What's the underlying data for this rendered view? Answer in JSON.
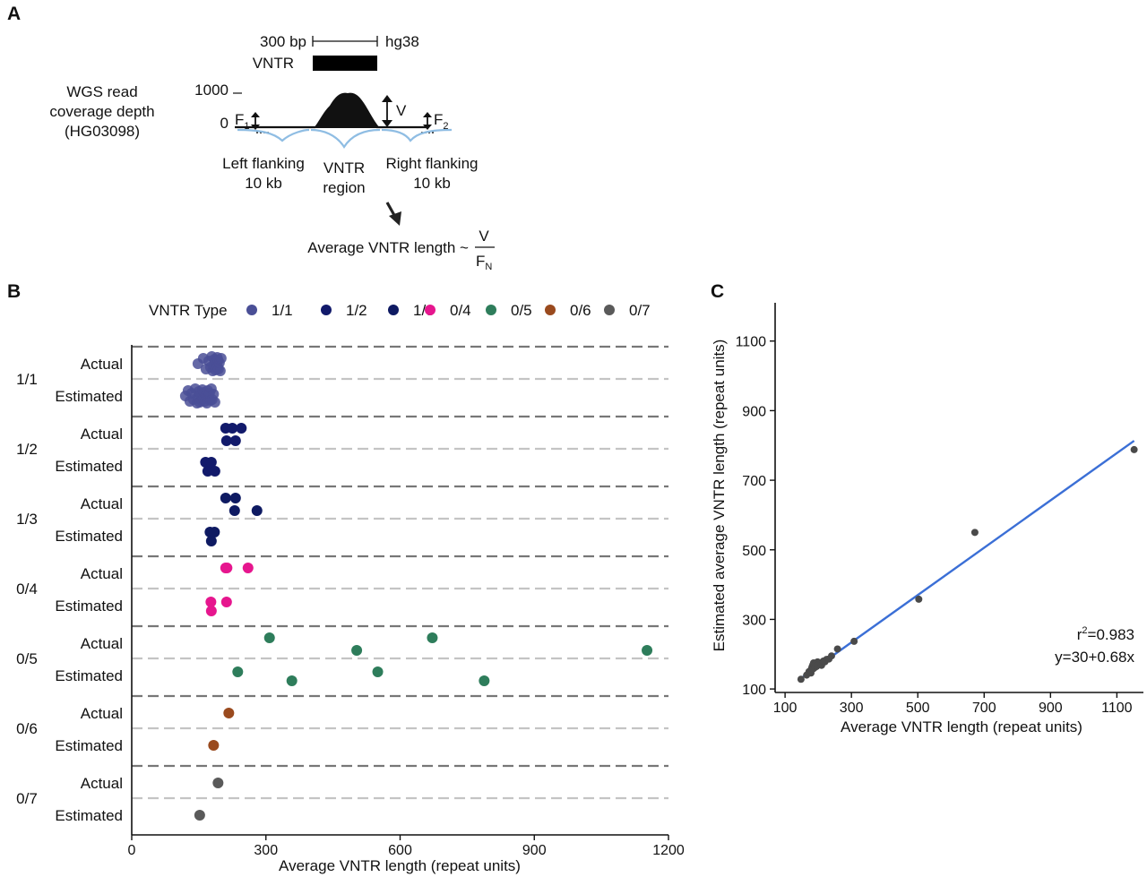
{
  "panel_a": {
    "letter": "A",
    "scale_label": "300 bp",
    "genome_label": "hg38",
    "vntr_label": "VNTR",
    "coverage_label_lines": [
      "WGS read",
      "coverage depth",
      "(HG03098)"
    ],
    "y_top": "1000",
    "y_bottom": "0",
    "f1_label": "F",
    "f1_sub": "1",
    "f2_label": "F",
    "f2_sub": "2",
    "v_label": "V",
    "left_flank_lines": [
      "Left flanking",
      "10 kb"
    ],
    "vntr_region_lines": [
      "VNTR",
      "region"
    ],
    "right_flank_lines": [
      "Right flanking",
      "10 kb"
    ],
    "formula_text": "Average VNTR length ~",
    "formula_num": "V",
    "formula_den": "F",
    "formula_den_sub": "N"
  },
  "panel_b": {
    "letter": "B",
    "legend_title": "VNTR Type",
    "colors": {
      "1/1": "#4a4f96",
      "1/2": "#121a6b",
      "1/3": "#0e1a62",
      "0/4": "#e6168e",
      "0/5": "#2e7d5b",
      "0/6": "#9a4a1e",
      "0/7": "#5a5a5a"
    },
    "actual_label": "Actual",
    "estimated_label": "Estimated"
  },
  "panel_c": {
    "letter": "C",
    "r2_prefix": "r",
    "r2_sup": "2",
    "r2_value": "=0.983",
    "equation": "y=30+0.68x",
    "line_color": "#3b6fd6",
    "point_color": "#4a4a4a"
  },
  "chart_data": [
    {
      "type": "scatter",
      "panel": "B",
      "xlabel": "Average VNTR length (repeat units)",
      "ylabel": "",
      "xlim": [
        0,
        1200
      ],
      "xticks": [
        0,
        300,
        600,
        900,
        1200
      ],
      "grid": true,
      "legend_position": "top",
      "categories": [
        "1/1",
        "1/2",
        "1/3",
        "0/4",
        "0/5",
        "0/6",
        "0/7"
      ],
      "series": [
        {
          "name": "1/1",
          "actual": [
            148,
            160,
            166,
            172,
            176,
            179,
            181,
            183,
            185,
            187,
            189,
            190,
            191,
            192,
            193,
            194,
            196,
            198,
            200
          ],
          "estimated": [
            120,
            126,
            130,
            134,
            138,
            142,
            146,
            148,
            150,
            152,
            154,
            156,
            158,
            160,
            162,
            164,
            166,
            168,
            170,
            172,
            174,
            176,
            178,
            180,
            183,
            186
          ]
        },
        {
          "name": "1/2",
          "actual": [
            210,
            212,
            225,
            232,
            245
          ],
          "estimated": [
            165,
            170,
            178,
            186
          ]
        },
        {
          "name": "1/3",
          "actual": [
            210,
            230,
            232,
            280
          ],
          "estimated": [
            175,
            178,
            185
          ]
        },
        {
          "name": "0/4",
          "actual": [
            210,
            213,
            260
          ],
          "estimated": [
            177,
            178,
            212
          ]
        },
        {
          "name": "0/5",
          "actual": [
            308,
            503,
            672,
            1152
          ],
          "estimated": [
            237,
            358,
            550,
            788
          ]
        },
        {
          "name": "0/6",
          "actual": [
            217
          ],
          "estimated": [
            183
          ]
        },
        {
          "name": "0/7",
          "actual": [
            193
          ],
          "estimated": [
            152
          ]
        }
      ]
    },
    {
      "type": "scatter",
      "panel": "C",
      "xlabel": "Average VNTR length (repeat units)",
      "ylabel": "Estimated average VNTR length (repeat units)",
      "xlim": [
        70,
        1180
      ],
      "ylim": [
        90,
        1210
      ],
      "xticks": [
        100,
        300,
        500,
        700,
        900,
        1100
      ],
      "yticks": [
        100,
        300,
        500,
        700,
        900,
        1100
      ],
      "grid": false,
      "x": [
        148,
        165,
        172,
        178,
        180,
        182,
        184,
        185,
        186,
        188,
        190,
        192,
        195,
        198,
        200,
        205,
        210,
        215,
        220,
        225,
        232,
        240,
        258,
        308,
        503,
        672,
        1152
      ],
      "y": [
        128,
        140,
        150,
        146,
        160,
        165,
        170,
        158,
        175,
        168,
        162,
        172,
        165,
        178,
        170,
        175,
        168,
        180,
        178,
        185,
        186,
        195,
        215,
        237,
        358,
        550,
        788
      ],
      "fit": {
        "intercept": 30,
        "slope": 0.68,
        "r2": 0.983
      }
    }
  ]
}
